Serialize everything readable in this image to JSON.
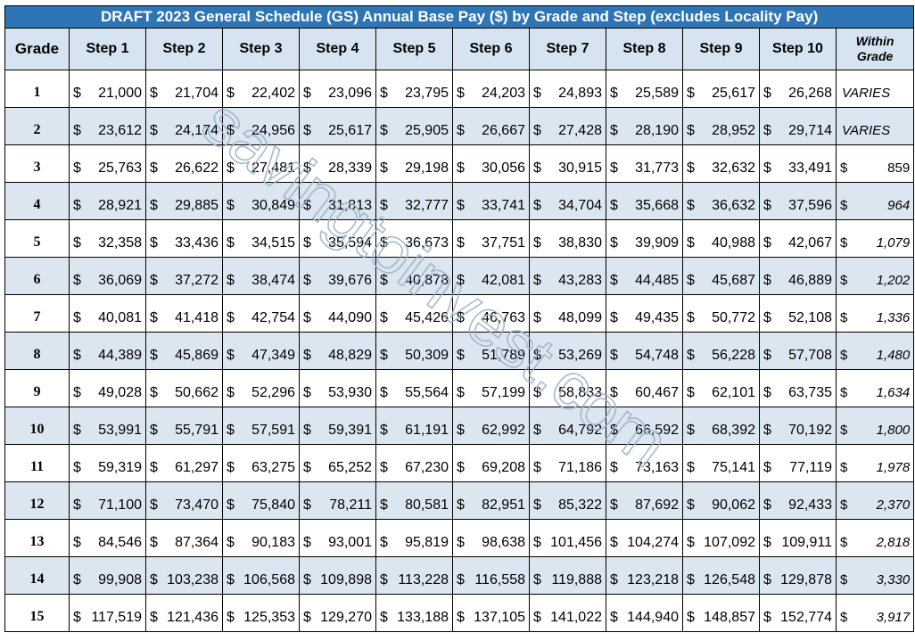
{
  "chart_data": {
    "type": "table",
    "title": "DRAFT 2023 General Schedule (GS) Annual Base Pay ($) by Grade and Step (excludes Locality Pay)",
    "columns": [
      "Grade",
      "Step 1",
      "Step 2",
      "Step 3",
      "Step 4",
      "Step 5",
      "Step 6",
      "Step 7",
      "Step 8",
      "Step 9",
      "Step 10",
      "Within Grade"
    ],
    "currency_symbol": "$",
    "rows": [
      {
        "grade": "1",
        "steps": [
          "21,000",
          "21,704",
          "22,402",
          "23,096",
          "23,795",
          "24,203",
          "24,893",
          "25,589",
          "25,617",
          "26,268"
        ],
        "within": "VARIES",
        "within_money": false
      },
      {
        "grade": "2",
        "steps": [
          "23,612",
          "24,174",
          "24,956",
          "25,617",
          "25,905",
          "26,667",
          "27,428",
          "28,190",
          "28,952",
          "29,714"
        ],
        "within": "VARIES",
        "within_money": false
      },
      {
        "grade": "3",
        "steps": [
          "25,763",
          "26,622",
          "27,481",
          "28,339",
          "29,198",
          "30,056",
          "30,915",
          "31,773",
          "32,632",
          "33,491"
        ],
        "within": "859",
        "within_money": true,
        "within_plain": true
      },
      {
        "grade": "4",
        "steps": [
          "28,921",
          "29,885",
          "30,849",
          "31,813",
          "32,777",
          "33,741",
          "34,704",
          "35,668",
          "36,632",
          "37,596"
        ],
        "within": "964",
        "within_money": true
      },
      {
        "grade": "5",
        "steps": [
          "32,358",
          "33,436",
          "34,515",
          "35,594",
          "36,673",
          "37,751",
          "38,830",
          "39,909",
          "40,988",
          "42,067"
        ],
        "within": "1,079",
        "within_money": true
      },
      {
        "grade": "6",
        "steps": [
          "36,069",
          "37,272",
          "38,474",
          "39,676",
          "40,878",
          "42,081",
          "43,283",
          "44,485",
          "45,687",
          "46,889"
        ],
        "within": "1,202",
        "within_money": true
      },
      {
        "grade": "7",
        "steps": [
          "40,081",
          "41,418",
          "42,754",
          "44,090",
          "45,426",
          "46,763",
          "48,099",
          "49,435",
          "50,772",
          "52,108"
        ],
        "within": "1,336",
        "within_money": true
      },
      {
        "grade": "8",
        "steps": [
          "44,389",
          "45,869",
          "47,349",
          "48,829",
          "50,309",
          "51,789",
          "53,269",
          "54,748",
          "56,228",
          "57,708"
        ],
        "within": "1,480",
        "within_money": true
      },
      {
        "grade": "9",
        "steps": [
          "49,028",
          "50,662",
          "52,296",
          "53,930",
          "55,564",
          "57,199",
          "58,833",
          "60,467",
          "62,101",
          "63,735"
        ],
        "within": "1,634",
        "within_money": true
      },
      {
        "grade": "10",
        "steps": [
          "53,991",
          "55,791",
          "57,591",
          "59,391",
          "61,191",
          "62,992",
          "64,792",
          "66,592",
          "68,392",
          "70,192"
        ],
        "within": "1,800",
        "within_money": true
      },
      {
        "grade": "11",
        "steps": [
          "59,319",
          "61,297",
          "63,275",
          "65,252",
          "67,230",
          "69,208",
          "71,186",
          "73,163",
          "75,141",
          "77,119"
        ],
        "within": "1,978",
        "within_money": true
      },
      {
        "grade": "12",
        "steps": [
          "71,100",
          "73,470",
          "75,840",
          "78,211",
          "80,581",
          "82,951",
          "85,322",
          "87,692",
          "90,062",
          "92,433"
        ],
        "within": "2,370",
        "within_money": true
      },
      {
        "grade": "13",
        "steps": [
          "84,546",
          "87,364",
          "90,183",
          "93,001",
          "95,819",
          "98,638",
          "101,456",
          "104,274",
          "107,092",
          "109,911"
        ],
        "within": "2,818",
        "within_money": true
      },
      {
        "grade": "14",
        "steps": [
          "99,908",
          "103,238",
          "106,568",
          "109,898",
          "113,228",
          "116,558",
          "119,888",
          "123,218",
          "126,548",
          "129,878"
        ],
        "within": "3,330",
        "within_money": true
      },
      {
        "grade": "15",
        "steps": [
          "117,519",
          "121,436",
          "125,353",
          "129,270",
          "133,188",
          "137,105",
          "141,022",
          "144,940",
          "148,857",
          "152,774"
        ],
        "within": "3,917",
        "within_money": true
      }
    ]
  },
  "watermark": "savingtoinvest.com",
  "colors": {
    "title_bg": "#2e75b6",
    "header_bg": "#d6e4f2",
    "alt_row_bg": "#dce6f1",
    "watermark": "#9eb3c7"
  }
}
